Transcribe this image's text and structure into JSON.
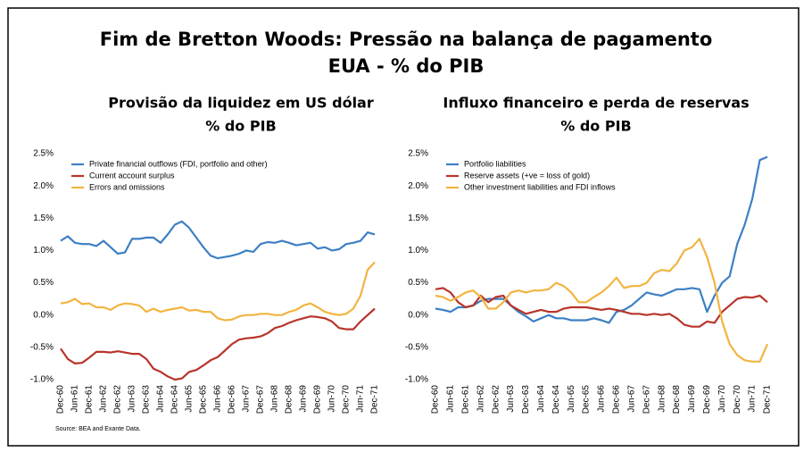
{
  "title": "Fim de Bretton Woods: Pressão na balança de pagamento",
  "subtitle": "EUA - % do PIB",
  "source": "Source: BEA and Exante Data.",
  "chart_data": [
    {
      "type": "line",
      "title": "Provisão da liquidez em US dólar",
      "subtitle": "% do PIB",
      "categories": [
        "Dec-60",
        null,
        "Jun-61",
        null,
        "Dec-61",
        null,
        "Jun-62",
        null,
        "Dec-62",
        null,
        "Jun-63",
        null,
        "Dec-63",
        null,
        "Jun-64",
        null,
        "Dec-64",
        null,
        "Jun-65",
        null,
        "Dec-65",
        null,
        "Jun-66",
        null,
        "Dec-66",
        null,
        "Jun-67",
        null,
        "Dec-67",
        null,
        "Jun-68",
        null,
        "Dec-68",
        null,
        "Jun-69",
        null,
        "Dec-69",
        null,
        "Jun-70",
        null,
        "Dec-70",
        null,
        "Jun-71",
        null,
        "Dec-71"
      ],
      "series": [
        {
          "name": "Private financial outflows (FDI, portfolio and other)",
          "color": "#3d7fc4",
          "values": [
            1.15,
            1.22,
            1.12,
            1.1,
            1.1,
            1.07,
            1.15,
            1.05,
            0.95,
            0.97,
            1.18,
            1.18,
            1.2,
            1.2,
            1.12,
            1.25,
            1.4,
            1.45,
            1.35,
            1.2,
            1.05,
            0.92,
            0.88,
            0.9,
            0.92,
            0.95,
            1.0,
            0.98,
            1.1,
            1.13,
            1.12,
            1.15,
            1.12,
            1.08,
            1.1,
            1.12,
            1.03,
            1.05,
            1.0,
            1.02,
            1.1,
            1.12,
            1.15,
            1.28,
            1.25
          ]
        },
        {
          "name": "Current account surplus",
          "color": "#b8342b",
          "values": [
            -0.52,
            -0.68,
            -0.75,
            -0.74,
            -0.66,
            -0.57,
            -0.57,
            -0.58,
            -0.56,
            -0.58,
            -0.6,
            -0.6,
            -0.68,
            -0.83,
            -0.88,
            -0.95,
            -1.0,
            -0.98,
            -0.88,
            -0.85,
            -0.78,
            -0.7,
            -0.65,
            -0.55,
            -0.45,
            -0.38,
            -0.36,
            -0.35,
            -0.33,
            -0.28,
            -0.2,
            -0.17,
            -0.12,
            -0.08,
            -0.05,
            -0.02,
            -0.03,
            -0.05,
            -0.1,
            -0.2,
            -0.22,
            -0.22,
            -0.1,
            0.0,
            0.1
          ]
        },
        {
          "name": "Errors and omissions",
          "color": "#f2b440",
          "values": [
            0.18,
            0.2,
            0.25,
            0.17,
            0.18,
            0.12,
            0.12,
            0.08,
            0.15,
            0.18,
            0.17,
            0.15,
            0.05,
            0.1,
            0.05,
            0.08,
            0.1,
            0.12,
            0.07,
            0.08,
            0.05,
            0.05,
            -0.05,
            -0.08,
            -0.07,
            -0.02,
            0.0,
            0.0,
            0.02,
            0.02,
            0.0,
            0.0,
            0.05,
            0.08,
            0.15,
            0.18,
            0.12,
            0.05,
            0.02,
            0.0,
            0.02,
            0.1,
            0.3,
            0.7,
            0.82
          ]
        }
      ],
      "ylim": [
        -1.0,
        2.5
      ],
      "yticks": [
        {
          "value": -1.0,
          "label": "-1.0%"
        },
        {
          "value": -0.5,
          "label": "-0.5%"
        },
        {
          "value": 0,
          "label": "0.0%"
        },
        {
          "value": 0.5,
          "label": "0.5%"
        },
        {
          "value": 1.0,
          "label": "1.0%"
        },
        {
          "value": 1.5,
          "label": "1.5%"
        },
        {
          "value": 2.0,
          "label": "2.0%"
        },
        {
          "value": 2.5,
          "label": "2.5%"
        }
      ],
      "legend": "upper left",
      "grid": false
    },
    {
      "type": "line",
      "title": "Influxo financeiro e perda de reservas",
      "subtitle": "% do PIB",
      "categories": [
        "Dec-60",
        null,
        "Jun-61",
        null,
        "Dec-61",
        null,
        "Jun-62",
        null,
        "Dec-62",
        null,
        "Jun-63",
        null,
        "Dec-63",
        null,
        "Jun-64",
        null,
        "Dec-64",
        null,
        "Jun-65",
        null,
        "Dec-65",
        null,
        "Jun-66",
        null,
        "Dec-66",
        null,
        "Jun-67",
        null,
        "Dec-67",
        null,
        "Jun-68",
        null,
        "Dec-68",
        null,
        "Jun-69",
        null,
        "Dec-69",
        null,
        "Jun-70",
        null,
        "Dec-70",
        null,
        "Jun-71",
        null,
        "Dec-71"
      ],
      "series": [
        {
          "name": "Portfolio liabilities",
          "color": "#3d7fc4",
          "values": [
            0.1,
            0.08,
            0.05,
            0.12,
            0.12,
            0.15,
            0.22,
            0.25,
            0.25,
            0.25,
            0.15,
            0.05,
            -0.02,
            -0.1,
            -0.05,
            0.0,
            -0.05,
            -0.05,
            -0.08,
            -0.08,
            -0.08,
            -0.05,
            -0.08,
            -0.12,
            0.05,
            0.08,
            0.15,
            0.25,
            0.35,
            0.32,
            0.3,
            0.35,
            0.4,
            0.4,
            0.42,
            0.4,
            0.05,
            0.3,
            0.5,
            0.6,
            1.1,
            1.4,
            1.8,
            2.4,
            2.45
          ]
        },
        {
          "name": "Reserve assets (+ve = loss of gold)",
          "color": "#b8342b",
          "values": [
            0.4,
            0.42,
            0.35,
            0.2,
            0.12,
            0.15,
            0.3,
            0.2,
            0.28,
            0.3,
            0.15,
            0.08,
            0.02,
            0.05,
            0.08,
            0.05,
            0.05,
            0.1,
            0.12,
            0.12,
            0.12,
            0.1,
            0.08,
            0.1,
            0.08,
            0.05,
            0.02,
            0.02,
            0.0,
            0.02,
            0.0,
            0.02,
            -0.05,
            -0.15,
            -0.18,
            -0.18,
            -0.1,
            -0.12,
            0.05,
            0.15,
            0.25,
            0.28,
            0.27,
            0.3,
            0.2
          ]
        },
        {
          "name": "Other investment liabilities and FDI inflows",
          "color": "#f2b440",
          "values": [
            0.3,
            0.28,
            0.22,
            0.28,
            0.35,
            0.38,
            0.28,
            0.1,
            0.1,
            0.2,
            0.35,
            0.38,
            0.35,
            0.38,
            0.38,
            0.4,
            0.5,
            0.45,
            0.35,
            0.2,
            0.2,
            0.28,
            0.35,
            0.45,
            0.58,
            0.42,
            0.45,
            0.45,
            0.5,
            0.65,
            0.7,
            0.68,
            0.8,
            1.0,
            1.05,
            1.18,
            0.9,
            0.5,
            -0.1,
            -0.45,
            -0.62,
            -0.7,
            -0.72,
            -0.72,
            -0.45
          ]
        }
      ],
      "ylim": [
        -1.0,
        2.5
      ],
      "yticks": [
        {
          "value": -1.0,
          "label": "-1.0%"
        },
        {
          "value": -0.5,
          "label": "-0.5%"
        },
        {
          "value": 0,
          "label": "0.0%"
        },
        {
          "value": 0.5,
          "label": "0.5%"
        },
        {
          "value": 1.0,
          "label": "1.0%"
        },
        {
          "value": 1.5,
          "label": "1.5%"
        },
        {
          "value": 2.0,
          "label": "2.0%"
        },
        {
          "value": 2.5,
          "label": "2.5%"
        }
      ],
      "legend": "upper left",
      "grid": false
    }
  ]
}
